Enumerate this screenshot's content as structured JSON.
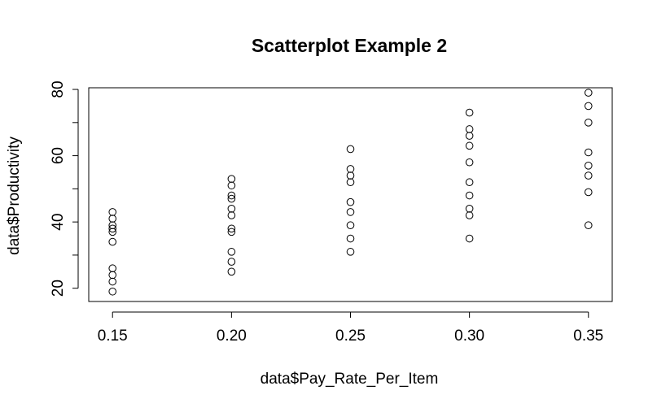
{
  "chart_data": {
    "type": "scatter",
    "title": "Scatterplot Example 2",
    "xlabel": "data$Pay_Rate_Per_Item",
    "ylabel": "data$Productivity",
    "x_ticks": [
      "0.15",
      "0.20",
      "0.25",
      "0.30",
      "0.35"
    ],
    "y_ticks": [
      "20",
      "40",
      "60",
      "80"
    ],
    "xlim": [
      0.14,
      0.36
    ],
    "ylim": [
      16,
      80.5
    ],
    "grid": false,
    "legend": "none",
    "marker": "open-circle",
    "color": "#000000",
    "points": [
      {
        "x": 0.15,
        "y": 43
      },
      {
        "x": 0.15,
        "y": 41
      },
      {
        "x": 0.15,
        "y": 39
      },
      {
        "x": 0.15,
        "y": 38
      },
      {
        "x": 0.15,
        "y": 37
      },
      {
        "x": 0.15,
        "y": 34
      },
      {
        "x": 0.15,
        "y": 26
      },
      {
        "x": 0.15,
        "y": 24
      },
      {
        "x": 0.15,
        "y": 22
      },
      {
        "x": 0.15,
        "y": 19
      },
      {
        "x": 0.2,
        "y": 53
      },
      {
        "x": 0.2,
        "y": 51
      },
      {
        "x": 0.2,
        "y": 48
      },
      {
        "x": 0.2,
        "y": 47
      },
      {
        "x": 0.2,
        "y": 44
      },
      {
        "x": 0.2,
        "y": 42
      },
      {
        "x": 0.2,
        "y": 38
      },
      {
        "x": 0.2,
        "y": 37
      },
      {
        "x": 0.2,
        "y": 31
      },
      {
        "x": 0.2,
        "y": 28
      },
      {
        "x": 0.2,
        "y": 25
      },
      {
        "x": 0.25,
        "y": 62
      },
      {
        "x": 0.25,
        "y": 56
      },
      {
        "x": 0.25,
        "y": 54
      },
      {
        "x": 0.25,
        "y": 52
      },
      {
        "x": 0.25,
        "y": 46
      },
      {
        "x": 0.25,
        "y": 43
      },
      {
        "x": 0.25,
        "y": 39
      },
      {
        "x": 0.25,
        "y": 35
      },
      {
        "x": 0.25,
        "y": 31
      },
      {
        "x": 0.3,
        "y": 73
      },
      {
        "x": 0.3,
        "y": 68
      },
      {
        "x": 0.3,
        "y": 66
      },
      {
        "x": 0.3,
        "y": 63
      },
      {
        "x": 0.3,
        "y": 58
      },
      {
        "x": 0.3,
        "y": 52
      },
      {
        "x": 0.3,
        "y": 48
      },
      {
        "x": 0.3,
        "y": 44
      },
      {
        "x": 0.3,
        "y": 42
      },
      {
        "x": 0.3,
        "y": 35
      },
      {
        "x": 0.35,
        "y": 79
      },
      {
        "x": 0.35,
        "y": 75
      },
      {
        "x": 0.35,
        "y": 70
      },
      {
        "x": 0.35,
        "y": 61
      },
      {
        "x": 0.35,
        "y": 57
      },
      {
        "x": 0.35,
        "y": 54
      },
      {
        "x": 0.35,
        "y": 49
      },
      {
        "x": 0.35,
        "y": 39
      }
    ]
  }
}
